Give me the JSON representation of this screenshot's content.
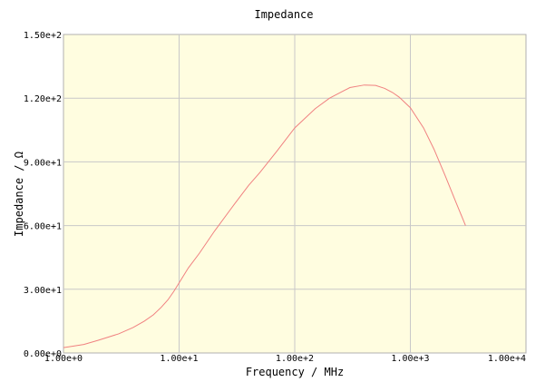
{
  "chart_data": {
    "type": "line",
    "title": "Impedance",
    "xlabel": "Frequency / MHz",
    "ylabel": "Impedance / Ω",
    "x_scale": "log",
    "xlim": [
      1,
      10000
    ],
    "ylim": [
      0,
      150
    ],
    "x_ticks": [
      1,
      10,
      100,
      1000,
      10000
    ],
    "x_tick_labels": [
      "1.00e+0",
      "1.00e+1",
      "1.00e+2",
      "1.00e+3",
      "1.00e+4"
    ],
    "y_ticks": [
      0,
      30,
      60,
      90,
      120,
      150
    ],
    "y_tick_labels": [
      "0.00e+0",
      "3.00e+1",
      "6.00e+1",
      "9.00e+1",
      "1.20e+2",
      "1.50e+2"
    ],
    "grid": true,
    "colors": {
      "plot_background": "#fffde0",
      "grid": "#c8c8c8",
      "series": "#f08080",
      "axis": "#b0b0b0",
      "text": "#000000"
    },
    "series": [
      {
        "x": [
          1,
          1.5,
          2,
          3,
          4,
          5,
          6,
          7,
          8,
          9,
          10,
          12,
          15,
          20,
          30,
          40,
          50,
          70,
          100,
          150,
          200,
          300,
          400,
          500,
          600,
          700,
          800,
          1000,
          1300,
          1600,
          2000,
          2500,
          3000
        ],
        "y": [
          2.5,
          4,
          6,
          9,
          12,
          15,
          18,
          21.5,
          25,
          29,
          33,
          40,
          47,
          57,
          70,
          79,
          85,
          95,
          106,
          115,
          120,
          125,
          126.2,
          126,
          124.6,
          122.7,
          120.5,
          115.5,
          106,
          96,
          83.5,
          70.5,
          60
        ]
      }
    ]
  }
}
